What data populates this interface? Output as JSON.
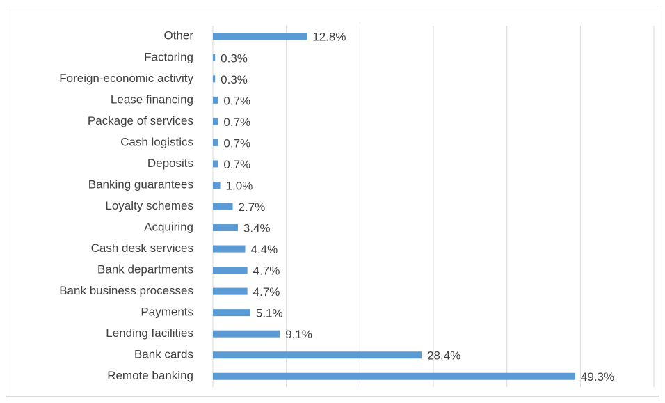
{
  "chart_data": {
    "type": "bar",
    "orientation": "horizontal",
    "categories": [
      "Other",
      "Factoring",
      "Foreign-economic activity",
      "Lease financing",
      "Package of services",
      "Cash logistics",
      "Deposits",
      "Banking guarantees",
      "Loyalty schemes",
      "Acquiring",
      "Cash desk services",
      "Bank departments",
      "Bank business processes",
      "Payments",
      "Lending facilities",
      "Bank cards",
      "Remote banking"
    ],
    "values": [
      12.8,
      0.3,
      0.3,
      0.7,
      0.7,
      0.7,
      0.7,
      1.0,
      2.7,
      3.4,
      4.4,
      4.7,
      4.7,
      5.1,
      9.1,
      28.4,
      49.3
    ],
    "value_labels": [
      "12.8%",
      "0.3%",
      "0.3%",
      "0.7%",
      "0.7%",
      "0.7%",
      "0.7%",
      "1.0%",
      "2.7%",
      "3.4%",
      "4.4%",
      "4.7%",
      "4.7%",
      "5.1%",
      "9.1%",
      "28.4%",
      "49.3%"
    ],
    "color": "#5b9bd5",
    "xlim": [
      0,
      60
    ],
    "xticks": [
      0,
      10,
      20,
      30,
      40,
      50,
      60
    ],
    "grid": true
  }
}
